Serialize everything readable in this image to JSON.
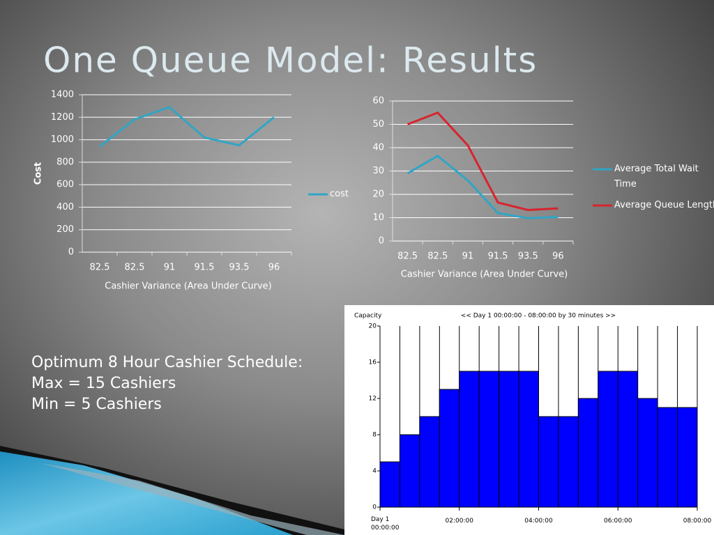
{
  "title": "One Queue Model: Results",
  "text": [
    "Optimum 8 Hour Cashier Schedule:",
    "Max = 15 Cashiers",
    "Min = 5 Cashiers"
  ],
  "chart_data": [
    {
      "type": "line",
      "categories": [
        "82.5",
        "82.5",
        "91",
        "91.5",
        "93.5",
        "96"
      ],
      "series": [
        {
          "name": "cost",
          "color": "#31a5c4",
          "values": [
            940,
            1180,
            1290,
            1020,
            950,
            1200
          ]
        }
      ],
      "ylim": [
        0,
        1400
      ],
      "yticks": [
        0,
        200,
        400,
        600,
        800,
        1000,
        1200,
        1400
      ],
      "xlabel": "Cashier Variance (Area Under Curve)",
      "ylabel": "Cost",
      "grid": true,
      "legend": "right"
    },
    {
      "type": "line",
      "categories": [
        "82.5",
        "82.5",
        "91",
        "91.5",
        "93.5",
        "96"
      ],
      "series": [
        {
          "name": "Average Total Wait Time",
          "color": "#31a5c4",
          "values": [
            29,
            36.5,
            26,
            12,
            9.8,
            10.3
          ]
        },
        {
          "name": "Average Queue Length",
          "color": "#d7242e",
          "values": [
            50,
            55,
            41,
            16.5,
            13.3,
            14
          ]
        }
      ],
      "ylim": [
        0,
        60
      ],
      "yticks": [
        0,
        10,
        20,
        30,
        40,
        50,
        60
      ],
      "xlabel": "Cashier Variance (Area Under Curve)",
      "grid": true,
      "legend": "right"
    },
    {
      "type": "histogram",
      "title": "<< Day 1  00:00:00 - 08:00:00  by 30 minutes >>",
      "ylabel": "Capacity",
      "bins": [
        0,
        0.5,
        1,
        1.5,
        2,
        2.5,
        3,
        3.5,
        4,
        4.5,
        5,
        5.5,
        6,
        6.5,
        7,
        7.5,
        8
      ],
      "values": [
        5,
        8,
        10,
        13,
        15,
        15,
        15,
        15,
        10,
        10,
        12,
        15,
        15,
        12,
        11,
        11
      ],
      "color": "#0000ff",
      "xlim": [
        0,
        8
      ],
      "xticks": [
        {
          "value": 0,
          "label": "Day 1 00:00:00"
        },
        {
          "value": 2,
          "label": "02:00:00"
        },
        {
          "value": 4,
          "label": "04:00:00"
        },
        {
          "value": 6,
          "label": "06:00:00"
        },
        {
          "value": 8,
          "label": "08:00:00"
        }
      ],
      "ylim": [
        0,
        20
      ],
      "yticks": [
        0,
        4,
        8,
        12,
        16,
        20
      ],
      "grid": true
    }
  ]
}
